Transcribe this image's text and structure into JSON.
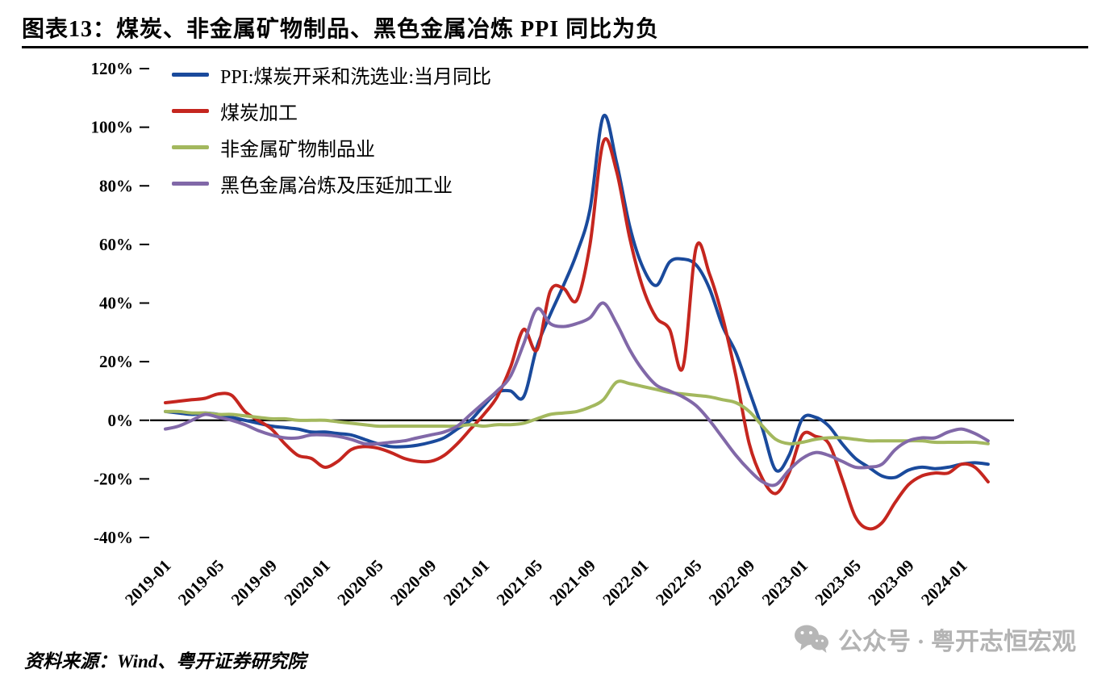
{
  "header": {
    "title": "图表13：煤炭、非金属矿物制品、黑色金属冶炼 PPI 同比为负"
  },
  "footer": {
    "source": "资料来源：Wind、粤开证券研究院"
  },
  "watermark": {
    "icon": "wechat-icon",
    "text": "公众号 · 粤开志恒宏观",
    "color": "#b3b3b3"
  },
  "chart_data": {
    "type": "line",
    "title": "",
    "xlabel": "",
    "ylabel": "",
    "grid": false,
    "legend_position": "top-left",
    "x_start": "2019-01",
    "x_end": "2024-03",
    "x_tick_step_months": 4,
    "x_tick_labels": [
      "2019-01",
      "2019-05",
      "2019-09",
      "2020-01",
      "2020-05",
      "2020-09",
      "2021-01",
      "2021-05",
      "2021-09",
      "2022-01",
      "2022-05",
      "2022-09",
      "2023-01",
      "2023-05",
      "2023-09",
      "2024-01"
    ],
    "ylim": [
      -40,
      120
    ],
    "y_ticks": [
      120,
      100,
      80,
      60,
      40,
      20,
      0,
      -20,
      -40
    ],
    "y_tick_labels": [
      "120%",
      "100%",
      "80%",
      "60%",
      "40%",
      "20%",
      "0%",
      "-20%",
      "-40%"
    ],
    "series": [
      {
        "name": "PPI:煤炭开采和洗选业:当月同比",
        "color": "#1a4a9c",
        "values": [
          3,
          2.5,
          2,
          2.5,
          2,
          1,
          0,
          -1,
          -2,
          -2.5,
          -3,
          -4,
          -4,
          -4.5,
          -5,
          -6.5,
          -8,
          -9,
          -9,
          -8.5,
          -7.5,
          -6,
          -3,
          0,
          5,
          9.5,
          10,
          8,
          25,
          36,
          46,
          57,
          72,
          103.7,
          88,
          66,
          52,
          46,
          54,
          55,
          53,
          45,
          32,
          23,
          10,
          -3,
          -17,
          -12,
          0.5,
          1,
          -2,
          -8,
          -13,
          -16,
          -19,
          -19.5,
          -17,
          -16,
          -16.5,
          -16,
          -15,
          -14.5,
          -15
        ]
      },
      {
        "name": "煤炭加工",
        "color": "#c5261f",
        "values": [
          6,
          6.5,
          7,
          7.5,
          9,
          8.5,
          3,
          0,
          -3,
          -8,
          -12,
          -13,
          -16,
          -14,
          -10,
          -9,
          -9.5,
          -11,
          -13,
          -14,
          -14,
          -12,
          -8,
          -3,
          2,
          8,
          18,
          31,
          24,
          44,
          45,
          41,
          60,
          95,
          85,
          62,
          45,
          35,
          31,
          18,
          59,
          50,
          35,
          15,
          -8,
          -20,
          -25,
          -18,
          -5,
          -5.5,
          -8,
          -20,
          -33,
          -37,
          -35,
          -28,
          -22,
          -19,
          -18,
          -18,
          -15,
          -16,
          -21
        ]
      },
      {
        "name": "非金属矿物制品业",
        "color": "#a3b85e",
        "values": [
          3,
          3,
          2.5,
          2.5,
          2,
          2,
          1.5,
          1,
          0.5,
          0.5,
          0,
          0,
          0,
          -0.5,
          -1,
          -1.5,
          -2,
          -2,
          -2,
          -2,
          -2,
          -2,
          -2,
          -1.5,
          -2,
          -1.5,
          -1.5,
          -1,
          0.5,
          2,
          2.5,
          3,
          4.5,
          7,
          13,
          12.5,
          11.5,
          10.5,
          9.5,
          9,
          8.5,
          8,
          7,
          6,
          3,
          -2,
          -6.5,
          -8,
          -7.5,
          -6.5,
          -6,
          -6,
          -6.5,
          -7,
          -7,
          -7,
          -7,
          -7,
          -7.5,
          -7.5,
          -7.5,
          -7.5,
          -8
        ]
      },
      {
        "name": "黑色金属冶炼及压延加工业",
        "color": "#8168a8",
        "values": [
          -3,
          -2,
          0,
          2,
          1,
          0,
          -1.5,
          -3.5,
          -5,
          -6,
          -6,
          -5,
          -5,
          -5.5,
          -6.5,
          -8,
          -8,
          -7.5,
          -7,
          -6,
          -5,
          -4,
          -2,
          2,
          6,
          10,
          15,
          26,
          38,
          33,
          32,
          33,
          35,
          40,
          33,
          24,
          17,
          12,
          10,
          8,
          5,
          0,
          -6,
          -12,
          -17,
          -21,
          -22,
          -17,
          -13,
          -11,
          -12,
          -14,
          -16,
          -16,
          -15,
          -10,
          -7,
          -6,
          -6,
          -4,
          -3,
          -4.5,
          -7
        ]
      }
    ]
  }
}
